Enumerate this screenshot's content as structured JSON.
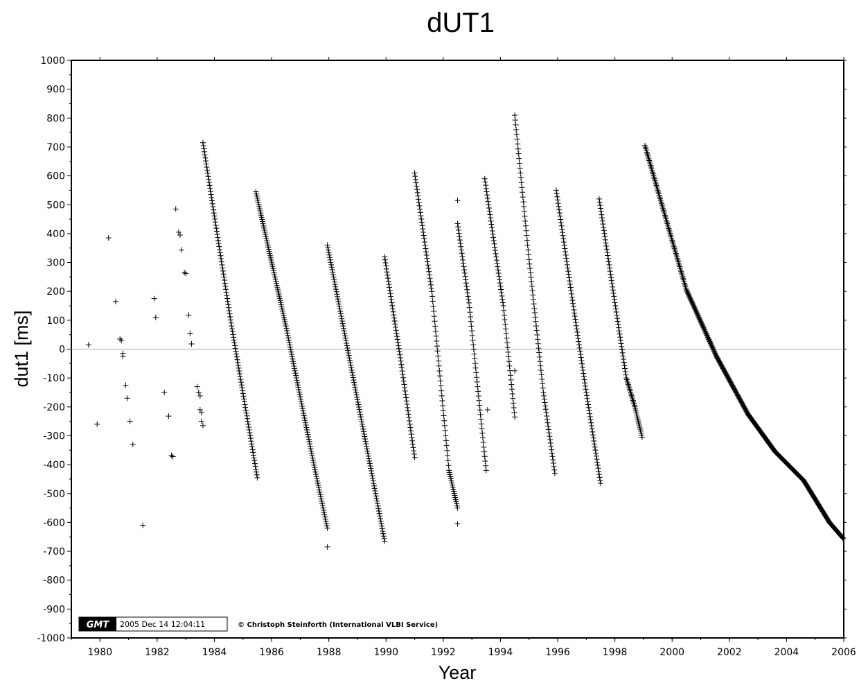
{
  "chart_data": {
    "type": "scatter",
    "title": "dUT1",
    "xlabel": "Year",
    "ylabel": "dut1 [ms]",
    "xlim": [
      1979,
      2006
    ],
    "ylim": [
      -1000,
      1000
    ],
    "x_ticks": [
      "1980",
      "1982",
      "1984",
      "1986",
      "1988",
      "1990",
      "1992",
      "1994",
      "1996",
      "1998",
      "2000",
      "2002",
      "2004",
      "2006"
    ],
    "y_ticks": [
      "1000",
      "900",
      "800",
      "700",
      "600",
      "500",
      "400",
      "300",
      "200",
      "100",
      "0",
      "-100",
      "-200",
      "-300",
      "-400",
      "-500",
      "-600",
      "-700",
      "-800",
      "-900",
      "-1000"
    ],
    "zero_line": true,
    "grid": false,
    "marker": "+",
    "marker_color": "#000000",
    "series": [
      {
        "values_desc": "scattered early points",
        "points": [
          [
            1979.6,
            15
          ],
          [
            1979.9,
            -260
          ],
          [
            1980.3,
            385
          ],
          [
            1980.55,
            165
          ],
          [
            1980.7,
            35
          ],
          [
            1980.75,
            30
          ],
          [
            1980.8,
            -15
          ],
          [
            1980.8,
            -25
          ],
          [
            1980.9,
            -125
          ],
          [
            1980.95,
            -170
          ],
          [
            1981.05,
            -250
          ],
          [
            1981.15,
            -330
          ],
          [
            1981.5,
            -610
          ],
          [
            1981.9,
            175
          ],
          [
            1981.95,
            110
          ],
          [
            1982.25,
            -150
          ],
          [
            1982.4,
            -232
          ],
          [
            1982.5,
            -368
          ],
          [
            1982.55,
            -372
          ],
          [
            1982.65,
            485
          ],
          [
            1982.75,
            405
          ],
          [
            1982.8,
            395
          ],
          [
            1982.85,
            343
          ],
          [
            1982.95,
            265
          ],
          [
            1983.0,
            262
          ],
          [
            1983.1,
            118
          ],
          [
            1983.15,
            55
          ],
          [
            1983.2,
            18
          ],
          [
            1983.4,
            -130
          ],
          [
            1983.45,
            -150
          ],
          [
            1983.5,
            -162
          ],
          [
            1983.5,
            -210
          ],
          [
            1983.55,
            -220
          ],
          [
            1983.55,
            -250
          ],
          [
            1983.6,
            -265
          ]
        ]
      }
    ],
    "segments": [
      {
        "x_start": 1983.6,
        "y_start": 715,
        "x_end": 1985.5,
        "y_end": -445,
        "bumps": [
          [
            1984.6,
            80
          ]
        ]
      },
      {
        "x_start": 1985.45,
        "y_start": 545,
        "x_end": 1987.95,
        "y_end": -620,
        "bumps": [
          [
            1986.5,
            80
          ],
          [
            1987.5,
            -410
          ]
        ],
        "extra": [
          [
            1987.95,
            -685
          ]
        ]
      },
      {
        "x_start": 1987.95,
        "y_start": 360,
        "x_end": 1989.95,
        "y_end": -665,
        "bumps": [
          [
            1988.5,
            80
          ],
          [
            1989.5,
            -430
          ]
        ]
      },
      {
        "x_start": 1989.95,
        "y_start": 320,
        "x_end": 1991.0,
        "y_end": -375,
        "bumps": [
          [
            1990.5,
            -30
          ]
        ]
      },
      {
        "x_start": 1991.0,
        "y_start": 610,
        "x_end": 1992.5,
        "y_end": -550,
        "bumps": [
          [
            1991.6,
            200
          ],
          [
            1992.2,
            -420
          ]
        ],
        "extra": [
          [
            1992.5,
            -605
          ],
          [
            1992.5,
            515
          ]
        ]
      },
      {
        "x_start": 1992.5,
        "y_start": 435,
        "x_end": 1993.5,
        "y_end": -420,
        "bumps": [
          [
            1992.9,
            160
          ]
        ],
        "extra": [
          [
            1993.55,
            -210
          ]
        ]
      },
      {
        "x_start": 1993.45,
        "y_start": 590,
        "x_end": 1994.5,
        "y_end": -235,
        "bumps": [
          [
            1994.1,
            150
          ]
        ],
        "extra": [
          [
            1994.5,
            -75
          ]
        ]
      },
      {
        "x_start": 1994.5,
        "y_start": 810,
        "x_end": 1995.9,
        "y_end": -430,
        "bumps": [
          [
            1995.0,
            310
          ],
          [
            1995.5,
            -150
          ]
        ]
      },
      {
        "x_start": 1995.95,
        "y_start": 550,
        "x_end": 1997.5,
        "y_end": -465,
        "bumps": [
          [
            1996.5,
            180
          ],
          [
            1997.0,
            -150
          ]
        ]
      },
      {
        "x_start": 1997.45,
        "y_start": 520,
        "x_end": 1998.95,
        "y_end": -305,
        "bumps": [
          [
            1998.4,
            -100
          ],
          [
            1998.7,
            -200
          ]
        ]
      },
      {
        "x_start": 1999.05,
        "y_start": 705,
        "x_end": 2005.98,
        "y_end": -655,
        "bumps": [
          [
            1999.6,
            515
          ],
          [
            2000.5,
            205
          ],
          [
            2001.55,
            -25
          ],
          [
            2002.65,
            -225
          ],
          [
            2003.6,
            -355
          ],
          [
            2004.6,
            -455
          ],
          [
            2005.5,
            -600
          ]
        ]
      }
    ]
  },
  "stamp": {
    "logo": "GMT",
    "timestamp": "2005 Dec 14 12:04:11",
    "credit": "© Christoph Steinforth (International VLBI Service)"
  }
}
